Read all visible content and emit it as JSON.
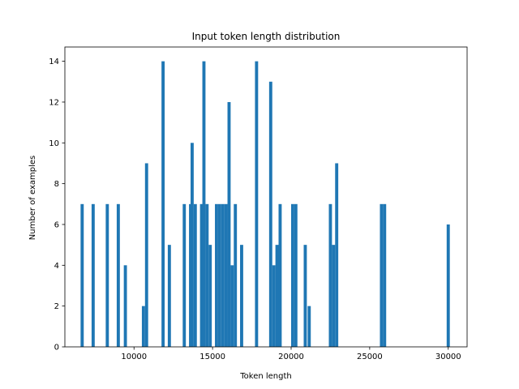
{
  "chart_data": {
    "type": "bar",
    "title": "Input token length distribution",
    "xlabel": "Token length",
    "ylabel": "Number of examples",
    "xlim": [
      5600,
      31200
    ],
    "ylim": [
      0,
      14.7
    ],
    "x_ticks": [
      10000,
      15000,
      20000,
      25000,
      30000
    ],
    "y_ticks": [
      0,
      2,
      4,
      6,
      8,
      10,
      12,
      14
    ],
    "bar_color": "#1f77b4",
    "grid": false,
    "series": [
      {
        "bin_width": 200,
        "bins": [
          {
            "x": 6700,
            "value": 7
          },
          {
            "x": 7400,
            "value": 7
          },
          {
            "x": 8300,
            "value": 7
          },
          {
            "x": 9000,
            "value": 7
          },
          {
            "x": 9450,
            "value": 4
          },
          {
            "x": 10600,
            "value": 2
          },
          {
            "x": 10800,
            "value": 9
          },
          {
            "x": 11850,
            "value": 14
          },
          {
            "x": 12250,
            "value": 5
          },
          {
            "x": 13200,
            "value": 7
          },
          {
            "x": 13600,
            "value": 7
          },
          {
            "x": 13700,
            "value": 10
          },
          {
            "x": 13900,
            "value": 7
          },
          {
            "x": 14300,
            "value": 7
          },
          {
            "x": 14450,
            "value": 14
          },
          {
            "x": 14650,
            "value": 7
          },
          {
            "x": 14850,
            "value": 5
          },
          {
            "x": 15250,
            "value": 7
          },
          {
            "x": 15450,
            "value": 7
          },
          {
            "x": 15650,
            "value": 7
          },
          {
            "x": 15850,
            "value": 7
          },
          {
            "x": 16050,
            "value": 12
          },
          {
            "x": 16250,
            "value": 4
          },
          {
            "x": 16450,
            "value": 7
          },
          {
            "x": 16850,
            "value": 5
          },
          {
            "x": 17800,
            "value": 14
          },
          {
            "x": 18700,
            "value": 13
          },
          {
            "x": 18900,
            "value": 4
          },
          {
            "x": 19100,
            "value": 5
          },
          {
            "x": 19300,
            "value": 7
          },
          {
            "x": 20100,
            "value": 7
          },
          {
            "x": 20300,
            "value": 7
          },
          {
            "x": 20900,
            "value": 5
          },
          {
            "x": 21150,
            "value": 2
          },
          {
            "x": 22500,
            "value": 7
          },
          {
            "x": 22700,
            "value": 5
          },
          {
            "x": 22900,
            "value": 9
          },
          {
            "x": 25750,
            "value": 7
          },
          {
            "x": 25950,
            "value": 7
          },
          {
            "x": 30000,
            "value": 6
          }
        ]
      }
    ]
  }
}
